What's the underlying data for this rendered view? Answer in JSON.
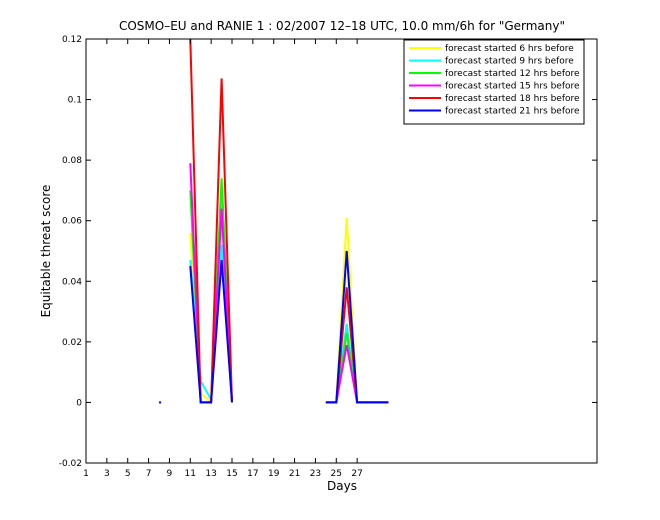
{
  "chart_data": {
    "type": "line",
    "title": "COSMO–EU and RANIE 1 : 02/2007 12–18 UTC, 10.0 mm/6h for \"Germany\"",
    "xlabel": "Days",
    "ylabel": "Equitable threat score",
    "xlim": [
      1,
      50
    ],
    "ylim": [
      -0.02,
      0.12
    ],
    "x_ticks": [
      1,
      3,
      5,
      7,
      9,
      11,
      13,
      15,
      17,
      19,
      21,
      23,
      25,
      27
    ],
    "x_tick_labels": [
      "1",
      "3",
      "5",
      "7",
      "9",
      "11",
      "13",
      "15",
      "17",
      "19",
      "21",
      "23",
      "25",
      "27"
    ],
    "y_ticks": [
      -0.02,
      0,
      0.02,
      0.04,
      0.06,
      0.08,
      0.1,
      0.12
    ],
    "y_tick_labels": [
      "-0.02",
      "0",
      "0.02",
      "0.04",
      "0.06",
      "0.08",
      "0.1",
      "0.12"
    ],
    "legend_position": "top-right",
    "grid": false,
    "series": [
      {
        "name": "forecast started 6 hrs before",
        "color": "#ffff00",
        "segments": [
          [
            [
              11,
              0.056
            ],
            [
              12,
              0.003
            ],
            [
              13,
              0.0
            ],
            [
              14,
              0.066
            ],
            [
              15,
              0.0
            ]
          ],
          [
            [
              24,
              0.0
            ],
            [
              25,
              0.0
            ],
            [
              26,
              0.061
            ],
            [
              27,
              0.0
            ],
            [
              28,
              0.0
            ],
            [
              29,
              0.0
            ],
            [
              30,
              0.0
            ]
          ]
        ]
      },
      {
        "name": "forecast started 9 hrs before",
        "color": "#00ffff",
        "segments": [
          [
            [
              11,
              0.047
            ],
            [
              12,
              0.007
            ],
            [
              13,
              0.001
            ],
            [
              14,
              0.052
            ],
            [
              15,
              0.0
            ]
          ],
          [
            [
              24,
              0.0
            ],
            [
              25,
              0.0
            ],
            [
              26,
              0.026
            ],
            [
              27,
              0.0
            ],
            [
              28,
              0.0
            ],
            [
              29,
              0.0
            ],
            [
              30,
              0.0
            ]
          ]
        ]
      },
      {
        "name": "forecast started 12 hrs before",
        "color": "#00ff00",
        "segments": [
          [
            [
              11,
              0.07
            ],
            [
              12,
              0.0
            ],
            [
              13,
              0.0
            ],
            [
              14,
              0.074
            ],
            [
              15,
              0.0
            ]
          ],
          [
            [
              24,
              0.0
            ],
            [
              25,
              0.0
            ],
            [
              26,
              0.023
            ],
            [
              27,
              0.0
            ],
            [
              28,
              0.0
            ],
            [
              29,
              0.0
            ],
            [
              30,
              0.0
            ]
          ]
        ]
      },
      {
        "name": "forecast started 15 hrs before",
        "color": "#ff00ff",
        "segments": [
          [
            [
              11,
              0.079
            ],
            [
              12,
              0.0
            ],
            [
              13,
              0.0
            ],
            [
              14,
              0.064
            ],
            [
              15,
              0.0
            ]
          ],
          [
            [
              24,
              0.0
            ],
            [
              25,
              0.0
            ],
            [
              26,
              0.019
            ],
            [
              27,
              0.0
            ],
            [
              28,
              0.0
            ],
            [
              29,
              0.0
            ],
            [
              30,
              0.0
            ]
          ]
        ]
      },
      {
        "name": "forecast started 18 hrs before",
        "color": "#ff0000",
        "segments": [
          [
            [
              11,
              0.12
            ],
            [
              12,
              0.0
            ],
            [
              13,
              0.0
            ],
            [
              14,
              0.107
            ],
            [
              15,
              0.0
            ]
          ],
          [
            [
              24,
              0.0
            ],
            [
              25,
              0.0
            ],
            [
              26,
              0.038
            ],
            [
              27,
              0.0
            ],
            [
              28,
              0.0
            ],
            [
              29,
              0.0
            ],
            [
              30,
              0.0
            ]
          ]
        ]
      },
      {
        "name": "forecast started 21 hrs before",
        "color": "#0000ff",
        "segments": [
          [
            [
              8,
              0.0
            ],
            [
              8.2,
              0.0
            ]
          ],
          [
            [
              11,
              0.045
            ],
            [
              12,
              0.0
            ],
            [
              13,
              0.0
            ],
            [
              14,
              0.047
            ],
            [
              15,
              0.0
            ]
          ],
          [
            [
              24,
              0.0
            ],
            [
              25,
              0.0
            ],
            [
              26,
              0.05
            ],
            [
              27,
              0.0
            ],
            [
              28,
              0.0
            ],
            [
              29,
              0.0
            ],
            [
              30,
              0.0
            ]
          ]
        ]
      }
    ]
  }
}
